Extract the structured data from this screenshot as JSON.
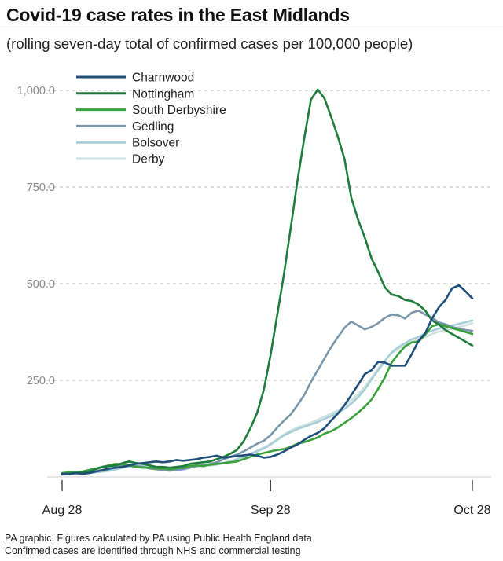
{
  "header": {
    "title": "Covid-19 case rates in the East Midlands",
    "subtitle": "(rolling seven-day total of confirmed cases per 100,000 people)"
  },
  "footer": {
    "line1": "PA graphic. Figures calculated by PA using Public Health England data",
    "line2": "Confirmed cases are identified through NHS and commercial testing"
  },
  "chart_data": {
    "type": "line",
    "title": "Covid-19 case rates in the East Midlands",
    "subtitle": "(rolling seven-day total of confirmed cases per 100,000 people)",
    "xlabel": "",
    "ylabel": "",
    "x_ticks": [
      "Aug 28",
      "Sep 28",
      "Oct 28"
    ],
    "y_ticks": [
      "250.0",
      "500.0",
      "750.0",
      "1,000.0"
    ],
    "y_tick_values": [
      250,
      500,
      750,
      1000
    ],
    "ylim": [
      0,
      1000
    ],
    "grid": "horizontal dashed",
    "legend_position": "top-left",
    "x": [
      "Aug 28",
      "Aug 29",
      "Aug 30",
      "Aug 31",
      "Sep 1",
      "Sep 2",
      "Sep 3",
      "Sep 4",
      "Sep 5",
      "Sep 6",
      "Sep 7",
      "Sep 8",
      "Sep 9",
      "Sep 10",
      "Sep 11",
      "Sep 12",
      "Sep 13",
      "Sep 14",
      "Sep 15",
      "Sep 16",
      "Sep 17",
      "Sep 18",
      "Sep 19",
      "Sep 20",
      "Sep 21",
      "Sep 22",
      "Sep 23",
      "Sep 24",
      "Sep 25",
      "Sep 26",
      "Sep 27",
      "Sep 28",
      "Sep 29",
      "Sep 30",
      "Oct 1",
      "Oct 2",
      "Oct 3",
      "Oct 4",
      "Oct 5",
      "Oct 6",
      "Oct 7",
      "Oct 8",
      "Oct 9",
      "Oct 10",
      "Oct 11",
      "Oct 12",
      "Oct 13",
      "Oct 14",
      "Oct 15",
      "Oct 16",
      "Oct 17",
      "Oct 18",
      "Oct 19",
      "Oct 20",
      "Oct 21",
      "Oct 22",
      "Oct 23",
      "Oct 24",
      "Oct 25",
      "Oct 26",
      "Oct 27",
      "Oct 28"
    ],
    "series": [
      {
        "name": "Charnwood",
        "color": "#1f4e79",
        "values": [
          8,
          8,
          10,
          8,
          10,
          14,
          18,
          22,
          24,
          26,
          30,
          34,
          36,
          38,
          40,
          38,
          40,
          44,
          42,
          44,
          46,
          50,
          52,
          55,
          50,
          52,
          54,
          56,
          58,
          55,
          50,
          52,
          58,
          66,
          76,
          84,
          96,
          106,
          114,
          126,
          146,
          164,
          186,
          212,
          238,
          266,
          276,
          298,
          296,
          288,
          288,
          288,
          318,
          352,
          372,
          410,
          438,
          458,
          488,
          496,
          480,
          462
        ]
      },
      {
        "name": "Nottingham",
        "color": "#1e7d3a",
        "values": [
          8,
          8,
          10,
          12,
          14,
          20,
          26,
          28,
          30,
          36,
          40,
          36,
          34,
          30,
          26,
          26,
          24,
          26,
          28,
          34,
          36,
          38,
          40,
          46,
          52,
          60,
          70,
          92,
          126,
          166,
          226,
          316,
          420,
          526,
          646,
          766,
          876,
          976,
          1002,
          980,
          932,
          880,
          822,
          722,
          666,
          620,
          566,
          530,
          490,
          472,
          468,
          458,
          455,
          446,
          430,
          405,
          395,
          380,
          370,
          360,
          350,
          340
        ]
      },
      {
        "name": "South Derbyshire",
        "color": "#3aa23a",
        "values": [
          10,
          12,
          12,
          14,
          18,
          22,
          26,
          30,
          34,
          32,
          30,
          26,
          24,
          24,
          22,
          22,
          20,
          22,
          24,
          28,
          30,
          28,
          32,
          34,
          36,
          38,
          40,
          46,
          52,
          58,
          62,
          66,
          70,
          72,
          78,
          86,
          90,
          96,
          102,
          112,
          118,
          128,
          140,
          152,
          166,
          182,
          200,
          228,
          258,
          296,
          318,
          338,
          348,
          350,
          368,
          390,
          395,
          390,
          385,
          380,
          375,
          370
        ]
      },
      {
        "name": "Gedling",
        "color": "#7a96ab",
        "values": [
          6,
          8,
          10,
          10,
          12,
          14,
          16,
          20,
          26,
          30,
          30,
          28,
          26,
          22,
          20,
          18,
          16,
          18,
          20,
          24,
          28,
          30,
          34,
          38,
          46,
          52,
          58,
          66,
          76,
          86,
          94,
          108,
          128,
          146,
          162,
          186,
          212,
          246,
          276,
          306,
          336,
          362,
          386,
          402,
          392,
          382,
          388,
          398,
          412,
          420,
          418,
          410,
          425,
          430,
          420,
          412,
          400,
          395,
          388,
          384,
          380,
          378
        ]
      },
      {
        "name": "Bolsover",
        "color": "#a8cfd8",
        "values": [
          6,
          6,
          8,
          10,
          10,
          12,
          14,
          16,
          20,
          24,
          26,
          28,
          30,
          28,
          26,
          24,
          22,
          22,
          24,
          26,
          28,
          30,
          30,
          32,
          36,
          40,
          46,
          52,
          60,
          66,
          74,
          84,
          96,
          108,
          116,
          124,
          130,
          136,
          142,
          150,
          158,
          166,
          176,
          190,
          206,
          226,
          252,
          276,
          300,
          322,
          336,
          346,
          356,
          362,
          372,
          378,
          384,
          388,
          392,
          396,
          400,
          405
        ]
      },
      {
        "name": "Derby",
        "color": "#cfe1e1",
        "values": [
          8,
          8,
          10,
          10,
          12,
          14,
          16,
          18,
          22,
          26,
          28,
          28,
          28,
          26,
          26,
          24,
          24,
          24,
          26,
          28,
          30,
          30,
          32,
          34,
          36,
          40,
          46,
          52,
          60,
          68,
          76,
          86,
          98,
          110,
          120,
          128,
          134,
          140,
          148,
          156,
          164,
          172,
          184,
          198,
          214,
          232,
          256,
          280,
          302,
          320,
          332,
          342,
          350,
          356,
          362,
          370,
          376,
          380,
          384,
          388,
          392,
          398
        ]
      }
    ]
  }
}
